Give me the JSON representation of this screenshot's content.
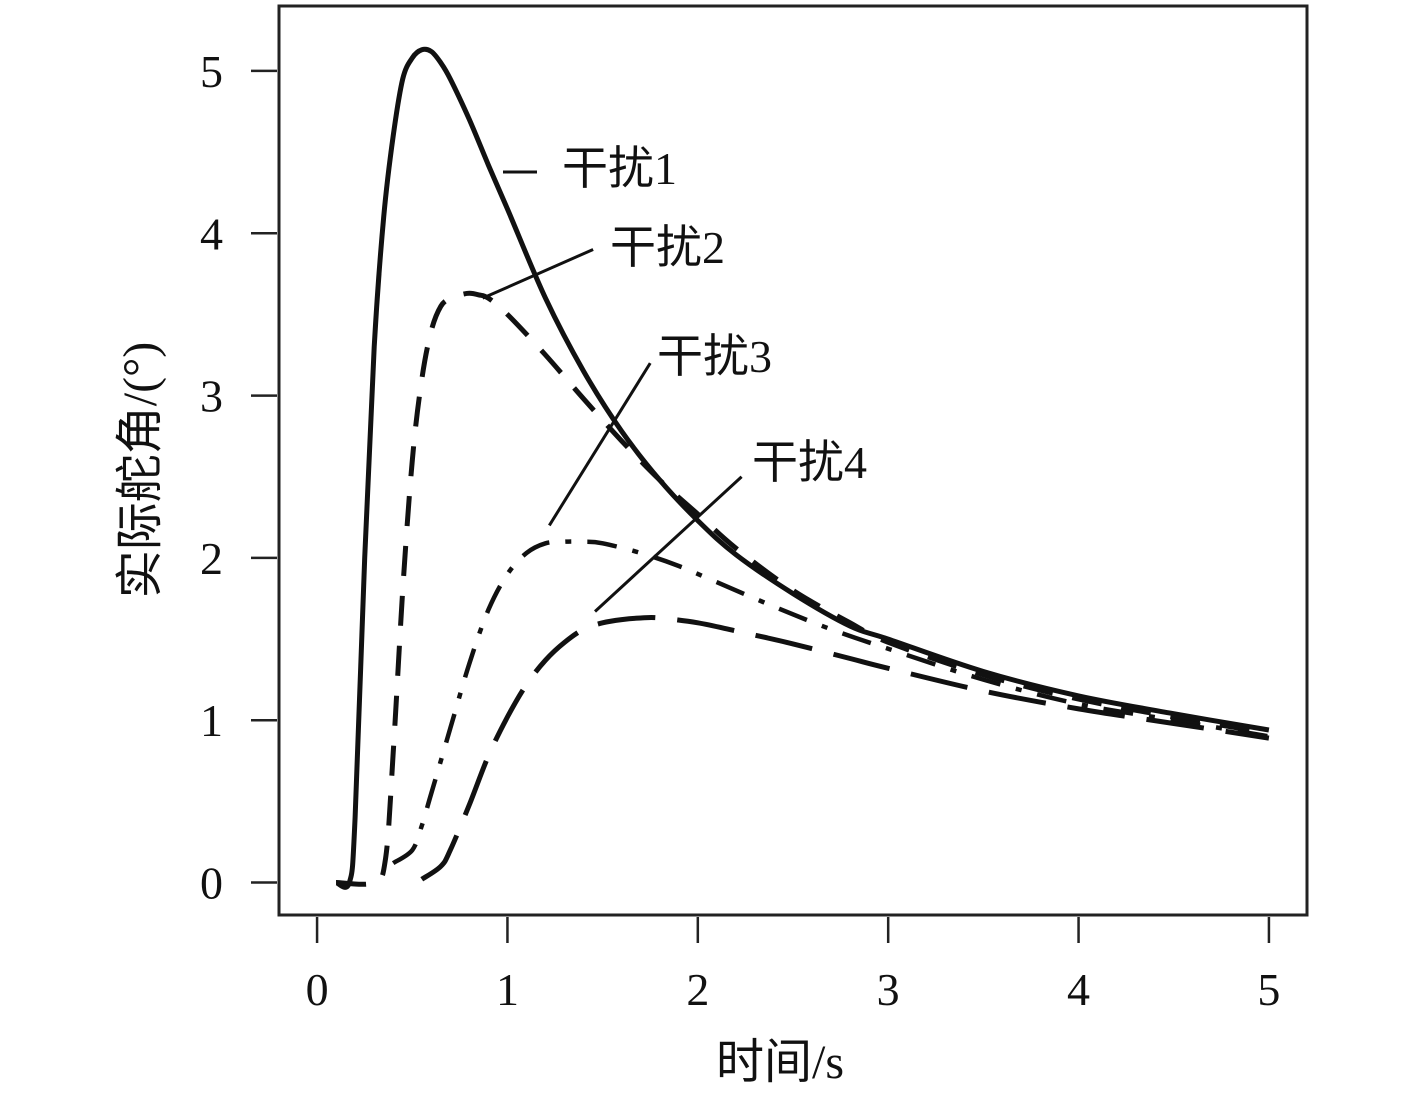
{
  "chart_data": {
    "type": "line",
    "title": "",
    "xlabel": "时间/s",
    "ylabel": "实际舵角/(°)",
    "xlim": [
      -0.2,
      5.2
    ],
    "ylim": [
      -0.2,
      5.4
    ],
    "xticks": [
      0,
      1,
      2,
      3,
      4,
      5
    ],
    "yticks": [
      0,
      1,
      2,
      3,
      4,
      5
    ],
    "xtick_labels": [
      "0",
      "1",
      "2",
      "3",
      "4",
      "5"
    ],
    "ytick_labels": [
      "0",
      "1",
      "2",
      "3",
      "4",
      "5"
    ],
    "grid": false,
    "legend": "none",
    "color": "#111111",
    "series": [
      {
        "name": "干扰1",
        "style": "solid",
        "x": [
          0.1,
          0.17,
          0.2,
          0.25,
          0.3,
          0.35,
          0.4,
          0.45,
          0.5,
          0.55,
          0.6,
          0.65,
          0.7,
          0.8,
          0.9,
          1.0,
          1.2,
          1.4,
          1.6,
          1.8,
          2.0,
          2.2,
          2.5,
          2.8,
          3.0,
          3.5,
          4.0,
          4.5,
          5.0
        ],
        "y": [
          0,
          0,
          0.4,
          2.0,
          3.3,
          4.1,
          4.6,
          4.95,
          5.08,
          5.13,
          5.12,
          5.05,
          4.95,
          4.7,
          4.42,
          4.15,
          3.6,
          3.15,
          2.78,
          2.48,
          2.23,
          2.02,
          1.78,
          1.58,
          1.5,
          1.3,
          1.15,
          1.04,
          0.94
        ]
      },
      {
        "name": "干扰2",
        "style": "dashed",
        "x": [
          0.1,
          0.3,
          0.36,
          0.4,
          0.45,
          0.5,
          0.55,
          0.6,
          0.65,
          0.7,
          0.75,
          0.8,
          0.85,
          0.9,
          1.0,
          1.2,
          1.4,
          1.6,
          1.8,
          2.0,
          2.2,
          2.5,
          2.8,
          3.0,
          3.5,
          4.0,
          4.5,
          5.0
        ],
        "y": [
          0,
          0,
          0.15,
          0.8,
          1.8,
          2.6,
          3.1,
          3.4,
          3.55,
          3.6,
          3.62,
          3.63,
          3.62,
          3.6,
          3.5,
          3.25,
          2.98,
          2.72,
          2.48,
          2.27,
          2.06,
          1.8,
          1.6,
          1.48,
          1.28,
          1.13,
          1.02,
          0.92
        ]
      },
      {
        "name": "干扰3",
        "style": "dashdot",
        "x": [
          0.4,
          0.5,
          0.55,
          0.6,
          0.7,
          0.8,
          0.9,
          1.0,
          1.1,
          1.2,
          1.3,
          1.4,
          1.5,
          1.7,
          1.9,
          2.1,
          2.4,
          2.7,
          3.0,
          3.5,
          4.0,
          4.5,
          5.0
        ],
        "y": [
          0.12,
          0.2,
          0.35,
          0.55,
          0.95,
          1.35,
          1.68,
          1.9,
          2.03,
          2.09,
          2.1,
          2.1,
          2.09,
          2.03,
          1.95,
          1.85,
          1.7,
          1.56,
          1.44,
          1.25,
          1.1,
          1.0,
          0.9
        ]
      },
      {
        "name": "干扰4",
        "style": "longdash",
        "x": [
          0.55,
          0.65,
          0.7,
          0.8,
          0.9,
          1.0,
          1.1,
          1.2,
          1.3,
          1.4,
          1.5,
          1.6,
          1.7,
          1.8,
          2.0,
          2.2,
          2.5,
          2.8,
          3.0,
          3.5,
          4.0,
          4.5,
          5.0
        ],
        "y": [
          0.02,
          0.1,
          0.2,
          0.48,
          0.78,
          1.02,
          1.22,
          1.37,
          1.48,
          1.56,
          1.6,
          1.62,
          1.63,
          1.63,
          1.6,
          1.55,
          1.47,
          1.38,
          1.32,
          1.18,
          1.07,
          0.98,
          0.89
        ]
      }
    ],
    "annotations": [
      {
        "text": "干扰1",
        "series": "干扰1",
        "marker": "dash"
      },
      {
        "text": "干扰2",
        "series": "干扰2",
        "leader_from": [
          0.87,
          3.6
        ],
        "leader_to": [
          1.45,
          3.9
        ]
      },
      {
        "text": "干扰3",
        "series": "干扰3",
        "leader_from": [
          1.22,
          2.2
        ],
        "leader_to": [
          1.75,
          3.2
        ]
      },
      {
        "text": "干扰4",
        "series": "干扰4",
        "leader_from": [
          1.46,
          1.67
        ],
        "leader_to": [
          2.23,
          2.5
        ]
      }
    ]
  }
}
